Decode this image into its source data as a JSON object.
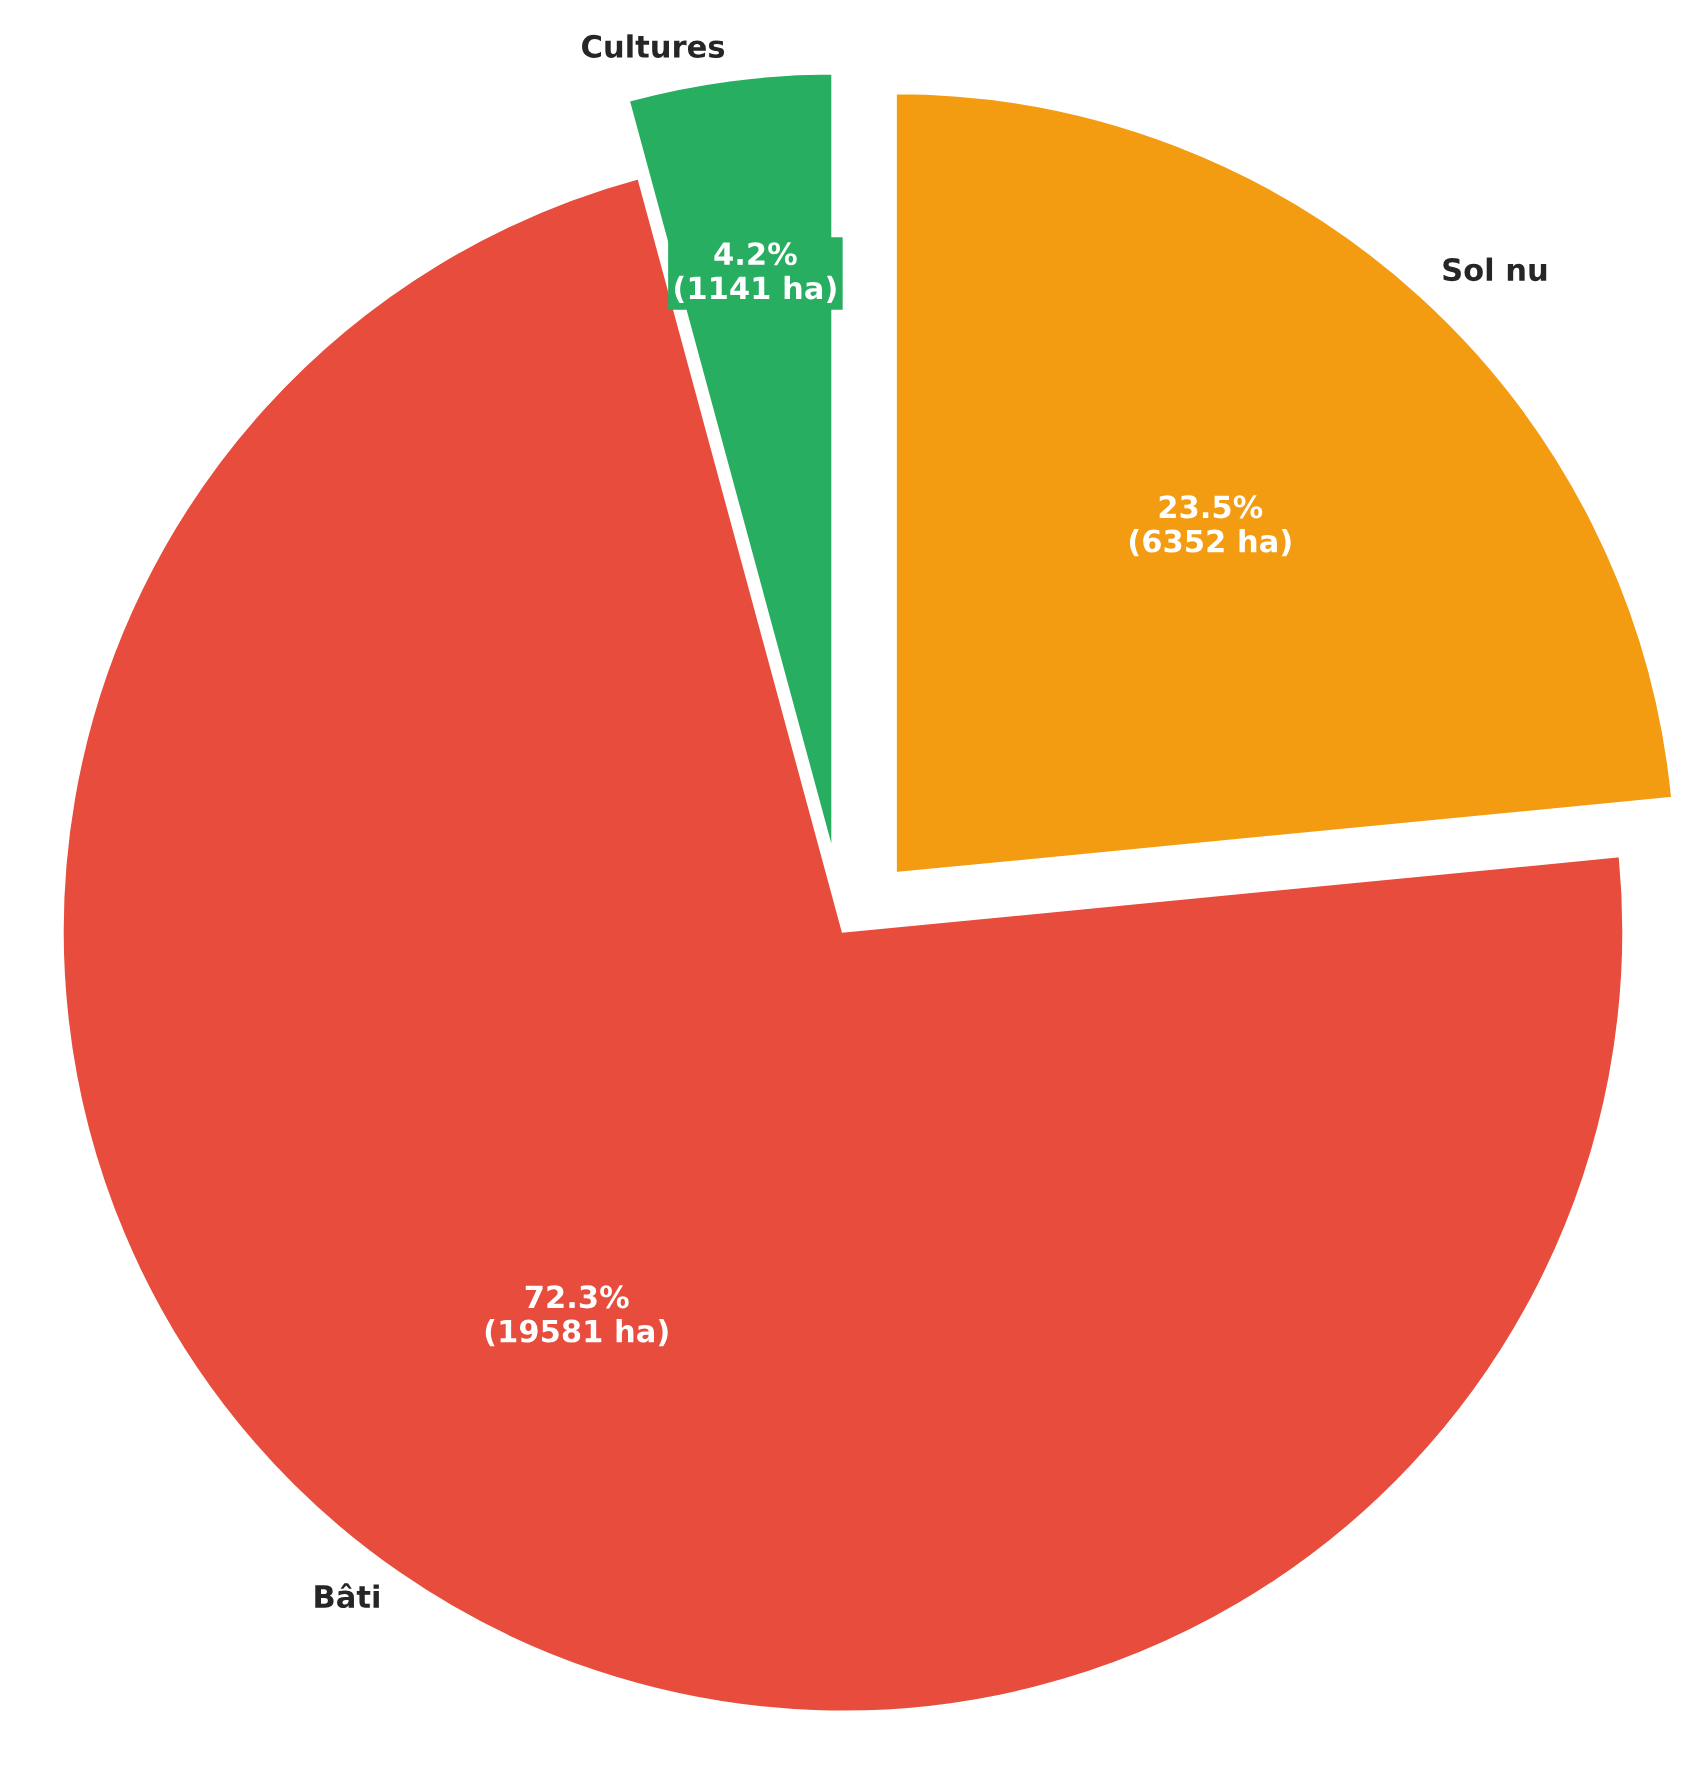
{
  "chart_data": {
    "type": "pie",
    "categories": [
      "Sol nu",
      "Bâti",
      "Cultures"
    ],
    "values": [
      6352,
      19581,
      1141
    ],
    "colors": [
      "#f39c12",
      "#e74c3c",
      "#27ae60"
    ],
    "value_labels": [
      "23.5%\n(6352 ha)",
      "72.3%\n(19581 ha)",
      "4.2%\n(1141 ha)"
    ]
  }
}
